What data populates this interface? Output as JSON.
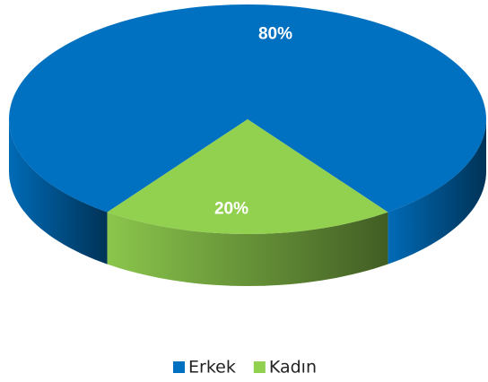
{
  "chart_data": {
    "type": "pie",
    "categories": [
      "Erkek",
      "Kadın"
    ],
    "values": [
      80,
      20
    ],
    "value_labels": [
      "80%",
      "20%"
    ],
    "colors": [
      "#0070c0",
      "#92d050"
    ],
    "legend": "bottom"
  }
}
